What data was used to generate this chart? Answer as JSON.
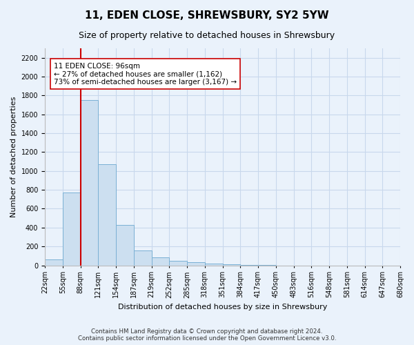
{
  "title": "11, EDEN CLOSE, SHREWSBURY, SY2 5YW",
  "subtitle": "Size of property relative to detached houses in Shrewsbury",
  "xlabel": "Distribution of detached houses by size in Shrewsbury",
  "ylabel": "Number of detached properties",
  "bar_values": [
    60,
    770,
    1750,
    1075,
    430,
    155,
    85,
    45,
    30,
    20,
    10,
    5,
    3,
    0,
    0,
    0,
    0,
    0,
    0,
    0
  ],
  "bin_labels": [
    "22sqm",
    "55sqm",
    "88sqm",
    "121sqm",
    "154sqm",
    "187sqm",
    "219sqm",
    "252sqm",
    "285sqm",
    "318sqm",
    "351sqm",
    "384sqm",
    "417sqm",
    "450sqm",
    "483sqm",
    "516sqm",
    "548sqm",
    "581sqm",
    "614sqm",
    "647sqm",
    "680sqm"
  ],
  "bar_color": "#ccdff0",
  "bar_edge_color": "#7ab0d4",
  "vline_color": "#cc0000",
  "vline_x": 2.0,
  "annotation_text": "11 EDEN CLOSE: 96sqm\n← 27% of detached houses are smaller (1,162)\n73% of semi-detached houses are larger (3,167) →",
  "annotation_box_color": "white",
  "annotation_box_edge": "#cc0000",
  "ylim": [
    0,
    2300
  ],
  "yticks": [
    0,
    200,
    400,
    600,
    800,
    1000,
    1200,
    1400,
    1600,
    1800,
    2000,
    2200
  ],
  "footnote": "Contains HM Land Registry data © Crown copyright and database right 2024.\nContains public sector information licensed under the Open Government Licence v3.0.",
  "grid_color": "#c8d8ec",
  "background_color": "#eaf2fb",
  "title_fontsize": 11,
  "subtitle_fontsize": 9,
  "ylabel_fontsize": 8,
  "xlabel_fontsize": 8,
  "tick_fontsize": 7,
  "annot_fontsize": 7.5
}
